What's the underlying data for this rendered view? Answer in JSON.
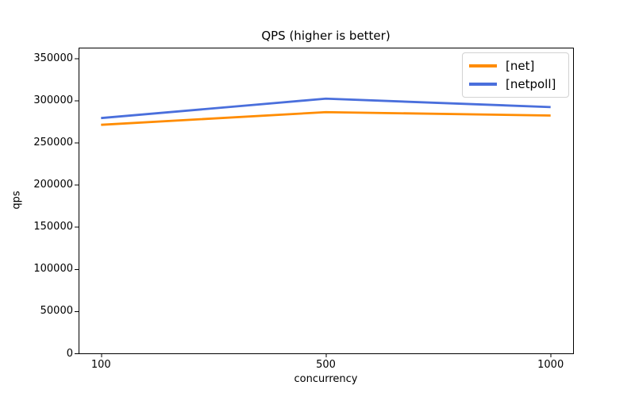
{
  "chart_data": {
    "type": "line",
    "title": "QPS (higher is better)",
    "xlabel": "concurrency",
    "ylabel": "qps",
    "categories": [
      "100",
      "500",
      "1000"
    ],
    "series": [
      {
        "name": "[net]",
        "color": "#ff8c00",
        "values": [
          271000,
          286000,
          282000
        ]
      },
      {
        "name": "[netpoll]",
        "color": "#4a6fdc",
        "values": [
          279000,
          302000,
          292000
        ]
      }
    ],
    "ylim": [
      0,
      362500
    ],
    "yticks": [
      0,
      50000,
      100000,
      150000,
      200000,
      250000,
      300000,
      350000
    ],
    "grid": false,
    "legend_position": "upper right",
    "axis_color": "#000000",
    "background_color": "#ffffff"
  }
}
